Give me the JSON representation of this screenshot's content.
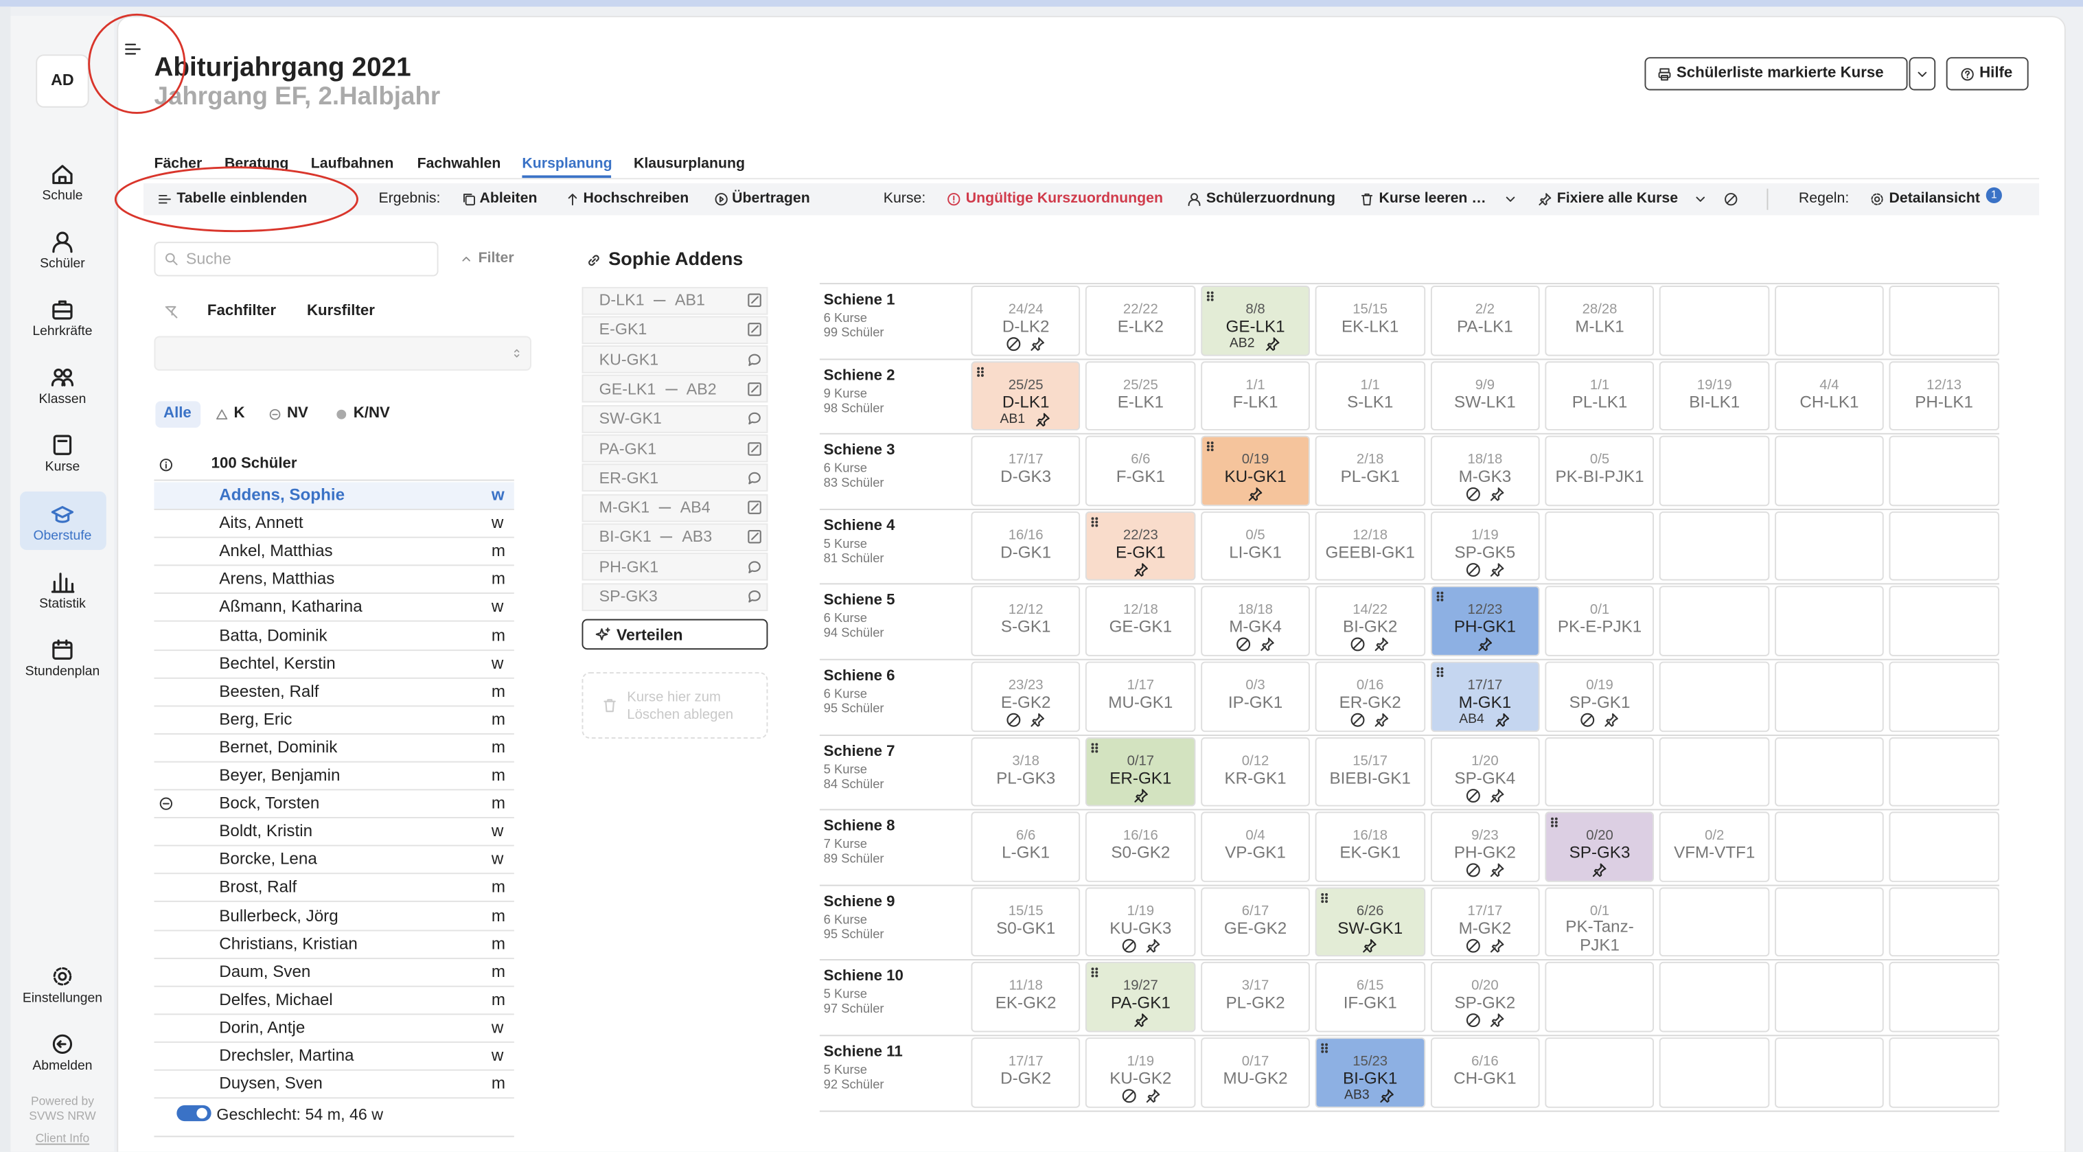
{
  "sidebar": {
    "avatar": "AD",
    "items": [
      "Schule",
      "Schüler",
      "Lehrkräfte",
      "Klassen",
      "Kurse",
      "Oberstufe",
      "Statistik",
      "Stundenplan"
    ],
    "active": 5,
    "bottom": [
      "Einstellungen",
      "Abmelden"
    ],
    "powered": "Powered by",
    "org": "SVWS NRW",
    "client": "Client Info"
  },
  "header": {
    "title": "Abiturjahrgang 2021",
    "subtitle": "Jahrgang EF, 2.Halbjahr",
    "buttons": [
      "Schülerliste markierte Kurse",
      "Hilfe"
    ]
  },
  "tabs": {
    "items": [
      "Fächer",
      "Beratung",
      "Laufbahnen",
      "Fachwahlen",
      "Kursplanung",
      "Klausurplanung"
    ],
    "active": 4
  },
  "toolbar": {
    "toggle": "Tabelle einblenden",
    "ergebnis_label": "Ergebnis:",
    "ergebnis": [
      "Ableiten",
      "Hochschreiben",
      "Übertragen"
    ],
    "kurse_label": "Kurse:",
    "warning": "Ungültige Kurszuordnungen",
    "kurse": [
      "Schülerzuordnung",
      "Kurse leeren …",
      "Fixiere alle Kurse"
    ],
    "regeln_label": "Regeln:",
    "detail": "Detailansicht",
    "badge": 1
  },
  "students": {
    "search": "Suche",
    "filter": "Filter",
    "fachfilter": "Fachfilter",
    "kursfilter": "Kursfilter",
    "chips": [
      "Alle",
      "K",
      "NV",
      "K/NV"
    ],
    "active_chip": 0,
    "count": "100 Schüler",
    "selected": 0,
    "rows": [
      {
        "name": "Addens, Sophie",
        "g": "w"
      },
      {
        "name": "Aits, Annett",
        "g": "w"
      },
      {
        "name": "Ankel, Matthias",
        "g": "m"
      },
      {
        "name": "Arens, Matthias",
        "g": "m"
      },
      {
        "name": "Aßmann, Katharina",
        "g": "w"
      },
      {
        "name": "Batta, Dominik",
        "g": "m"
      },
      {
        "name": "Bechtel, Kerstin",
        "g": "w"
      },
      {
        "name": "Beesten, Ralf",
        "g": "m"
      },
      {
        "name": "Berg, Eric",
        "g": "m"
      },
      {
        "name": "Bernet, Dominik",
        "g": "m"
      },
      {
        "name": "Beyer, Benjamin",
        "g": "m"
      },
      {
        "name": "Bock, Torsten",
        "g": "m",
        "markiert": true
      },
      {
        "name": "Boldt, Kristin",
        "g": "w"
      },
      {
        "name": "Borcke, Lena",
        "g": "w"
      },
      {
        "name": "Brost, Ralf",
        "g": "m"
      },
      {
        "name": "Bullerbeck, Jörg",
        "g": "m"
      },
      {
        "name": "Christians, Kristian",
        "g": "m"
      },
      {
        "name": "Daum, Sven",
        "g": "m"
      },
      {
        "name": "Delfes, Michael",
        "g": "m"
      },
      {
        "name": "Dorin, Antje",
        "g": "w"
      },
      {
        "name": "Drechsler, Martina",
        "g": "w"
      },
      {
        "name": "Duysen, Sven",
        "g": "m"
      }
    ],
    "footer": "Geschlecht: 54 m, 46 w"
  },
  "student": {
    "name": "Sophie Addens",
    "courses": [
      {
        "kurs": "D-LK1",
        "ab": "AB1",
        "schriftlich": true
      },
      {
        "kurs": "E-GK1",
        "schriftlich": true
      },
      {
        "kurs": "KU-GK1"
      },
      {
        "kurs": "GE-LK1",
        "ab": "AB2",
        "schriftlich": true
      },
      {
        "kurs": "SW-GK1"
      },
      {
        "kurs": "PA-GK1",
        "schriftlich": true
      },
      {
        "kurs": "ER-GK1"
      },
      {
        "kurs": "M-GK1",
        "ab": "AB4",
        "schriftlich": true
      },
      {
        "kurs": "BI-GK1",
        "ab": "AB3",
        "schriftlich": true
      },
      {
        "kurs": "PH-GK1"
      },
      {
        "kurs": "SP-GK3"
      }
    ],
    "verteilen": "Verteilen",
    "drop": "Kurse hier zum Löschen ablegen"
  },
  "schienen": [
    {
      "name": "Schiene 1",
      "kurse": "6 Kurse",
      "schueler": "99 Schüler",
      "cells": [
        {
          "n": "24/24",
          "k": "D-LK2",
          "block": true,
          "pin": true
        },
        {
          "n": "22/22",
          "k": "E-LK2"
        },
        {
          "n": "8/8",
          "k": "GE-LK1",
          "ab": "AB2",
          "pin": true,
          "color": "#e3ecd6"
        },
        {
          "n": "15/15",
          "k": "EK-LK1"
        },
        {
          "n": "2/2",
          "k": "PA-LK1"
        },
        {
          "n": "28/28",
          "k": "M-LK1"
        }
      ]
    },
    {
      "name": "Schiene 2",
      "kurse": "9 Kurse",
      "schueler": "98 Schüler",
      "cells": [
        {
          "n": "25/25",
          "k": "D-LK1",
          "ab": "AB1",
          "pin": true,
          "color": "#f9dccb"
        },
        {
          "n": "25/25",
          "k": "E-LK1"
        },
        {
          "n": "1/1",
          "k": "F-LK1"
        },
        {
          "n": "1/1",
          "k": "S-LK1"
        },
        {
          "n": "9/9",
          "k": "SW-LK1"
        },
        {
          "n": "1/1",
          "k": "PL-LK1"
        },
        {
          "n": "19/19",
          "k": "BI-LK1"
        },
        {
          "n": "4/4",
          "k": "CH-LK1"
        },
        {
          "n": "12/13",
          "k": "PH-LK1"
        }
      ]
    },
    {
      "name": "Schiene 3",
      "kurse": "6 Kurse",
      "schueler": "83 Schüler",
      "cells": [
        {
          "n": "17/17",
          "k": "D-GK3"
        },
        {
          "n": "6/6",
          "k": "F-GK1"
        },
        {
          "n": "0/19",
          "k": "KU-GK1",
          "pin": true,
          "color": "#f5c49c"
        },
        {
          "n": "2/18",
          "k": "PL-GK1"
        },
        {
          "n": "18/18",
          "k": "M-GK3",
          "block": true,
          "pin": true
        },
        {
          "n": "0/5",
          "k": "PK-BI-PJK1"
        }
      ]
    },
    {
      "name": "Schiene 4",
      "kurse": "5 Kurse",
      "schueler": "81 Schüler",
      "cells": [
        {
          "n": "16/16",
          "k": "D-GK1"
        },
        {
          "n": "22/23",
          "k": "E-GK1",
          "pin": true,
          "color": "#f9dccb"
        },
        {
          "n": "0/5",
          "k": "LI-GK1"
        },
        {
          "n": "12/18",
          "k": "GEEBI-GK1"
        },
        {
          "n": "1/19",
          "k": "SP-GK5",
          "block": true,
          "pin": true
        }
      ]
    },
    {
      "name": "Schiene 5",
      "kurse": "6 Kurse",
      "schueler": "94 Schüler",
      "cells": [
        {
          "n": "12/12",
          "k": "S-GK1"
        },
        {
          "n": "12/18",
          "k": "GE-GK1"
        },
        {
          "n": "18/18",
          "k": "M-GK4",
          "block": true,
          "pin": true
        },
        {
          "n": "14/22",
          "k": "BI-GK2",
          "block": true,
          "pin": true
        },
        {
          "n": "12/23",
          "k": "PH-GK1",
          "pin": true,
          "color": "#8db0e3"
        },
        {
          "n": "0/1",
          "k": "PK-E-PJK1"
        }
      ]
    },
    {
      "name": "Schiene 6",
      "kurse": "6 Kurse",
      "schueler": "95 Schüler",
      "cells": [
        {
          "n": "23/23",
          "k": "E-GK2",
          "block": true,
          "pin": true
        },
        {
          "n": "1/17",
          "k": "MU-GK1"
        },
        {
          "n": "0/3",
          "k": "IP-GK1"
        },
        {
          "n": "0/16",
          "k": "ER-GK2",
          "block": true,
          "pin": true
        },
        {
          "n": "17/17",
          "k": "M-GK1",
          "ab": "AB4",
          "pin": true,
          "color": "#c5d6f0"
        },
        {
          "n": "0/19",
          "k": "SP-GK1",
          "block": true,
          "pin": true
        }
      ]
    },
    {
      "name": "Schiene 7",
      "kurse": "5 Kurse",
      "schueler": "84 Schüler",
      "cells": [
        {
          "n": "3/18",
          "k": "PL-GK3"
        },
        {
          "n": "0/17",
          "k": "ER-GK1",
          "pin": true,
          "color": "#d3e3c0"
        },
        {
          "n": "0/12",
          "k": "KR-GK1"
        },
        {
          "n": "15/17",
          "k": "BIEBI-GK1"
        },
        {
          "n": "1/20",
          "k": "SP-GK4",
          "block": true,
          "pin": true
        }
      ]
    },
    {
      "name": "Schiene 8",
      "kurse": "7 Kurse",
      "schueler": "89 Schüler",
      "cells": [
        {
          "n": "6/6",
          "k": "L-GK1"
        },
        {
          "n": "16/16",
          "k": "S0-GK2"
        },
        {
          "n": "0/4",
          "k": "VP-GK1"
        },
        {
          "n": "16/18",
          "k": "EK-GK1"
        },
        {
          "n": "9/23",
          "k": "PH-GK2",
          "block": true,
          "pin": true
        },
        {
          "n": "0/20",
          "k": "SP-GK3",
          "pin": true,
          "color": "#dccfe3"
        },
        {
          "n": "0/2",
          "k": "VFM-VTF1"
        }
      ]
    },
    {
      "name": "Schiene 9",
      "kurse": "6 Kurse",
      "schueler": "95 Schüler",
      "cells": [
        {
          "n": "15/15",
          "k": "S0-GK1"
        },
        {
          "n": "1/19",
          "k": "KU-GK3",
          "block": true,
          "pin": true
        },
        {
          "n": "6/17",
          "k": "GE-GK2"
        },
        {
          "n": "6/26",
          "k": "SW-GK1",
          "pin": true,
          "color": "#e3ecd6"
        },
        {
          "n": "17/17",
          "k": "M-GK2",
          "block": true,
          "pin": true
        },
        {
          "n": "0/1",
          "k": "PK-Tanz-PJK1"
        }
      ]
    },
    {
      "name": "Schiene 10",
      "kurse": "5 Kurse",
      "schueler": "97 Schüler",
      "cells": [
        {
          "n": "11/18",
          "k": "EK-GK2"
        },
        {
          "n": "19/27",
          "k": "PA-GK1",
          "pin": true,
          "color": "#e3ecd6"
        },
        {
          "n": "3/17",
          "k": "PL-GK2"
        },
        {
          "n": "6/15",
          "k": "IF-GK1"
        },
        {
          "n": "0/20",
          "k": "SP-GK2",
          "block": true,
          "pin": true
        }
      ]
    },
    {
      "name": "Schiene 11",
      "kurse": "5 Kurse",
      "schueler": "92 Schüler",
      "cells": [
        {
          "n": "17/17",
          "k": "D-GK2"
        },
        {
          "n": "1/19",
          "k": "KU-GK2",
          "block": true,
          "pin": true
        },
        {
          "n": "0/17",
          "k": "MU-GK2"
        },
        {
          "n": "15/23",
          "k": "BI-GK1",
          "ab": "AB3",
          "pin": true,
          "color": "#8db0e3"
        },
        {
          "n": "6/16",
          "k": "CH-GK1"
        }
      ]
    }
  ]
}
